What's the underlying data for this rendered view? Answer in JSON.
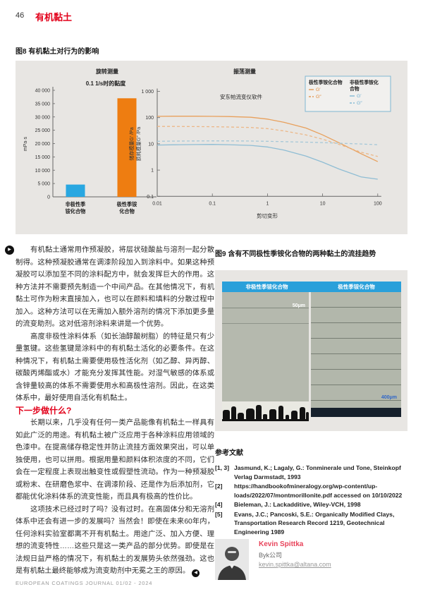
{
  "page": {
    "number": "46",
    "section_title": "有机黏土",
    "footer": "EUROPEAN COATINGS JOURNAL 01/02 - 2024"
  },
  "icons": {
    "continue": "▶",
    "end": "◀"
  },
  "figure8": {
    "caption": "图8 有机黏土对行为的影响",
    "left_header": "旋转测量",
    "right_header": "振荡测量"
  },
  "chart_data": [
    {
      "type": "bar",
      "title": "0.1 1/s时的黏度",
      "ylabel": "mPa·s",
      "ylim": [
        0,
        40000
      ],
      "ytick_step": 5000,
      "ytick_labels": [
        "0",
        "5 000",
        "10 000",
        "15 000",
        "20 000",
        "25 000",
        "30 000",
        "35 000",
        "40 000"
      ],
      "categories": [
        [
          "非极性季",
          "铵化合物"
        ],
        [
          "极性季铵",
          "化合物"
        ]
      ],
      "values": [
        4600,
        37000
      ],
      "colors": [
        "#29a7e1",
        "#ee7d11"
      ],
      "grid": false
    },
    {
      "type": "line",
      "title": "安东帕流变仪软件",
      "xlabel": "剪切变形",
      "ylabel_lines": [
        "储存模量G′ /Pa",
        "损耗模量G″ /Pa"
      ],
      "xscale": "log",
      "yscale": "log",
      "xlim": [
        0.01,
        100
      ],
      "ylim": [
        0.1,
        1000
      ],
      "xtick_labels": [
        "0.01",
        "0.1",
        "1",
        "10",
        "100"
      ],
      "ytick_labels": [
        "1 000",
        "100",
        "10",
        "1",
        "0.1"
      ],
      "grid": false,
      "legend": {
        "position": "top-right",
        "groups": [
          {
            "title_lines": [
              "极性季铵化合物"
            ],
            "color": "#e08a3c",
            "items": [
              {
                "label": "G′",
                "dash": false
              },
              {
                "label": "G″",
                "dash": true
              }
            ]
          },
          {
            "title_lines": [
              "非极性季铵化",
              "合物"
            ],
            "color": "#6fafd0",
            "items": [
              {
                "label": "G′",
                "dash": false
              },
              {
                "label": "G″",
                "dash": true
              }
            ]
          }
        ]
      },
      "series": [
        {
          "name": "极性季铵化合物 G′",
          "color": "#e8a05c",
          "dash": false,
          "points": [
            [
              0.01,
              112
            ],
            [
              0.02,
              113
            ],
            [
              0.05,
              113
            ],
            [
              0.1,
              112
            ],
            [
              0.2,
              110
            ],
            [
              0.5,
              103
            ],
            [
              1,
              88
            ],
            [
              2,
              66
            ],
            [
              5,
              40
            ],
            [
              10,
              22
            ],
            [
              20,
              11
            ],
            [
              50,
              4.2
            ],
            [
              100,
              2.1
            ]
          ]
        },
        {
          "name": "极性季铵化合物 G″",
          "color": "#ecb787",
          "dash": true,
          "points": [
            [
              0.01,
              46
            ],
            [
              0.02,
              46
            ],
            [
              0.05,
              45.5
            ],
            [
              0.1,
              45
            ],
            [
              0.2,
              44
            ],
            [
              0.5,
              42
            ],
            [
              1,
              38
            ],
            [
              2,
              31
            ],
            [
              5,
              22
            ],
            [
              10,
              15
            ],
            [
              20,
              9.5
            ],
            [
              50,
              4.8
            ],
            [
              100,
              3.3
            ]
          ]
        },
        {
          "name": "非极性季铵化合物 G″",
          "color": "#a6c8d8",
          "dash": true,
          "points": [
            [
              0.01,
              12.5
            ],
            [
              0.02,
              12.7
            ],
            [
              0.05,
              12.9
            ],
            [
              0.1,
              13
            ],
            [
              0.2,
              13
            ],
            [
              0.5,
              12.8
            ],
            [
              1,
              12.5
            ],
            [
              2,
              12.1
            ],
            [
              5,
              11.6
            ],
            [
              10,
              11.2
            ],
            [
              20,
              10.6
            ],
            [
              50,
              9.9
            ],
            [
              100,
              9.3
            ]
          ]
        },
        {
          "name": "非极性季铵化合物 G′",
          "color": "#8fbdd4",
          "dash": false,
          "points": [
            [
              0.01,
              9
            ],
            [
              0.02,
              9.2
            ],
            [
              0.05,
              9.4
            ],
            [
              0.1,
              9.5
            ],
            [
              0.2,
              9.3
            ],
            [
              0.5,
              8.7
            ],
            [
              1,
              7.6
            ],
            [
              2,
              5.8
            ],
            [
              5,
              3.4
            ],
            [
              10,
              2
            ],
            [
              20,
              1.1
            ],
            [
              50,
              0.55
            ],
            [
              100,
              0.45
            ]
          ]
        }
      ]
    }
  ],
  "body": {
    "p1": "有机黏土通常用作预凝胶，将层状硅酸盐与溶剂一起分散制得。这种预凝胶通常在调漆阶段加入到涂料中。如果这种预凝胶可以添加至不同的涂料配方中，就会发挥巨大的作用。这种方法并不需要预先制造一个中间产品。在其他情况下，有机黏土可作为粉末直接加入，也可以在颜料和填料的分散过程中加入。这种方法可以在无需加入额外溶剂的情况下添加更多量的流变助剂。这对低溶剂涂料来讲是一个优势。",
    "p2": "高度非极性涂料体系（如长油醇酸树脂）的特征是只有少量氢键。这些氢键是涂料中的有机黏土活化的必要条件。在这种情况下，有机黏土需要使用极性活化剂（如乙醇、异丙醇、碳酸丙烯酯或水）才能充分发挥其性能。对湿气敏感的体系或含锌量较高的体系不需要使用水和高极性溶剂。因此，在这类体系中，最好使用自活化有机黏土。",
    "heading": "下一步做什么?",
    "p3": "长期以来，几乎没有任何一类产品能像有机黏土一样具有如此广泛的用途。有机黏土被广泛应用于各种涂料应用领域的色漆中。在提高储存稳定性并防止流挂方面效果突出，可以单独使用，也可以拼用。根据用量和颜料体积浓度的不同，它们会在一定程度上表现出触变性或假塑性流动。作为一种预凝胶或粉末、在研磨色浆中、在调漆阶段、还是作为后添加剂，它都能优化涂料体系的流变性能，而且具有极高的性价比。",
    "p4": "这项技术已经过时了吗？没有过时。在高固体分和无溶剂体系中还会有进一步的发展吗？当然会！即使在未来60年内，任何涂料实验室都离不开有机黏土。用途广泛、加入方便、理想的流变特性……这些只是这一类产品的部分优势。即使是在法规日益严格的情况下，有机黏土的发展势头依然强劲。这也是有机黏土最终能够成为流变助剂中无冕之王的原因。"
  },
  "figure9": {
    "caption": "图9 含有不同极性季铵化合物的两种黏土的流挂趋势",
    "left_label": "非极性季铵化合物",
    "right_label": "极性季铵化合物",
    "left_scale": "50μm",
    "right_scale": "400μm"
  },
  "references": {
    "title": "参考文献",
    "items": [
      {
        "num": "[1, 3]",
        "text": "Jasmund, K.; Lagaly, G.: Tonminerale und Tone, Steinkopf Verlag Darmstadt, 1993"
      },
      {
        "num": "[2]",
        "text": "https://handbookofmineralogy.org/wp-content/up-loads/2022/07/montmorillonite.pdf accessed on 10/10/2022"
      },
      {
        "num": "[4]",
        "text": "Bieleman, J.: Lackadditive, Wiley-VCH, 1998"
      },
      {
        "num": "[5]",
        "text": "Evans, J.C.; Pancoski, S.E.: Organically Modified Clays, Transportation Research Record 1219, Geotechnical Engineering 1989"
      }
    ]
  },
  "author": {
    "name": "Kevin Spittka",
    "company": "Byk公司",
    "email": "kevin.spittka@altana.com"
  },
  "colors": {
    "accent_red": "#e2001a",
    "bar_blue": "#29a7e1",
    "bar_orange": "#ee7d11",
    "panel_gray": "#e8e6e3",
    "photo_header_blue": "#2aa0da"
  }
}
